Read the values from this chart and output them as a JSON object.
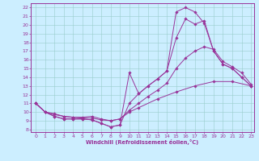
{
  "bg_color": "#cceeff",
  "line_color": "#993399",
  "grid_color": "#99cccc",
  "xlabel": "Windchill (Refroidissement éolien,°C)",
  "xlim": [
    -0.5,
    23.3
  ],
  "ylim": [
    7.7,
    22.5
  ],
  "xticks": [
    0,
    1,
    2,
    3,
    4,
    5,
    6,
    7,
    8,
    9,
    10,
    11,
    12,
    13,
    14,
    15,
    16,
    17,
    18,
    19,
    20,
    21,
    22,
    23
  ],
  "yticks": [
    8,
    9,
    10,
    11,
    12,
    13,
    14,
    15,
    16,
    17,
    18,
    19,
    20,
    21,
    22
  ],
  "line1": {
    "x": [
      0,
      1,
      2,
      3,
      4,
      5,
      6,
      7,
      8,
      9,
      10,
      11,
      12,
      13,
      14,
      15,
      16,
      17,
      18,
      19,
      20,
      21,
      22,
      23
    ],
    "y": [
      11,
      10,
      9.5,
      9.2,
      9.2,
      9.2,
      9.1,
      8.7,
      8.3,
      8.5,
      14.5,
      12.1,
      13.0,
      13.8,
      14.7,
      21.5,
      22.0,
      21.5,
      20.2,
      17.0,
      15.5,
      15.0,
      14.0,
      13.0
    ]
  },
  "line2": {
    "x": [
      0,
      1,
      2,
      3,
      4,
      5,
      6,
      7,
      8,
      9,
      10,
      11,
      12,
      13,
      14,
      15,
      16,
      17,
      18,
      19,
      20,
      21,
      22,
      23
    ],
    "y": [
      11,
      10,
      9.5,
      9.2,
      9.2,
      9.2,
      9.1,
      8.7,
      8.3,
      8.5,
      11.0,
      12.1,
      13.0,
      13.8,
      14.7,
      18.5,
      20.7,
      20.1,
      20.5,
      17.0,
      15.5,
      15.0,
      14.0,
      13.0
    ]
  },
  "line3": {
    "x": [
      0,
      1,
      2,
      3,
      4,
      5,
      6,
      7,
      8,
      9,
      10,
      11,
      12,
      13,
      14,
      15,
      16,
      17,
      18,
      19,
      20,
      21,
      22,
      23
    ],
    "y": [
      11,
      10,
      9.8,
      9.5,
      9.4,
      9.3,
      9.3,
      9.1,
      9.0,
      9.2,
      10.2,
      11.0,
      11.8,
      12.5,
      13.3,
      15.0,
      16.2,
      17.0,
      17.5,
      17.2,
      15.8,
      15.2,
      14.5,
      13.2
    ]
  },
  "line4": {
    "x": [
      0,
      1,
      2,
      3,
      4,
      5,
      6,
      7,
      8,
      9,
      10,
      11,
      13,
      15,
      17,
      19,
      21,
      23
    ],
    "y": [
      11,
      10.0,
      9.7,
      9.5,
      9.4,
      9.4,
      9.5,
      9.2,
      9.0,
      9.2,
      10.0,
      10.5,
      11.5,
      12.3,
      13.0,
      13.5,
      13.5,
      13.0
    ]
  }
}
